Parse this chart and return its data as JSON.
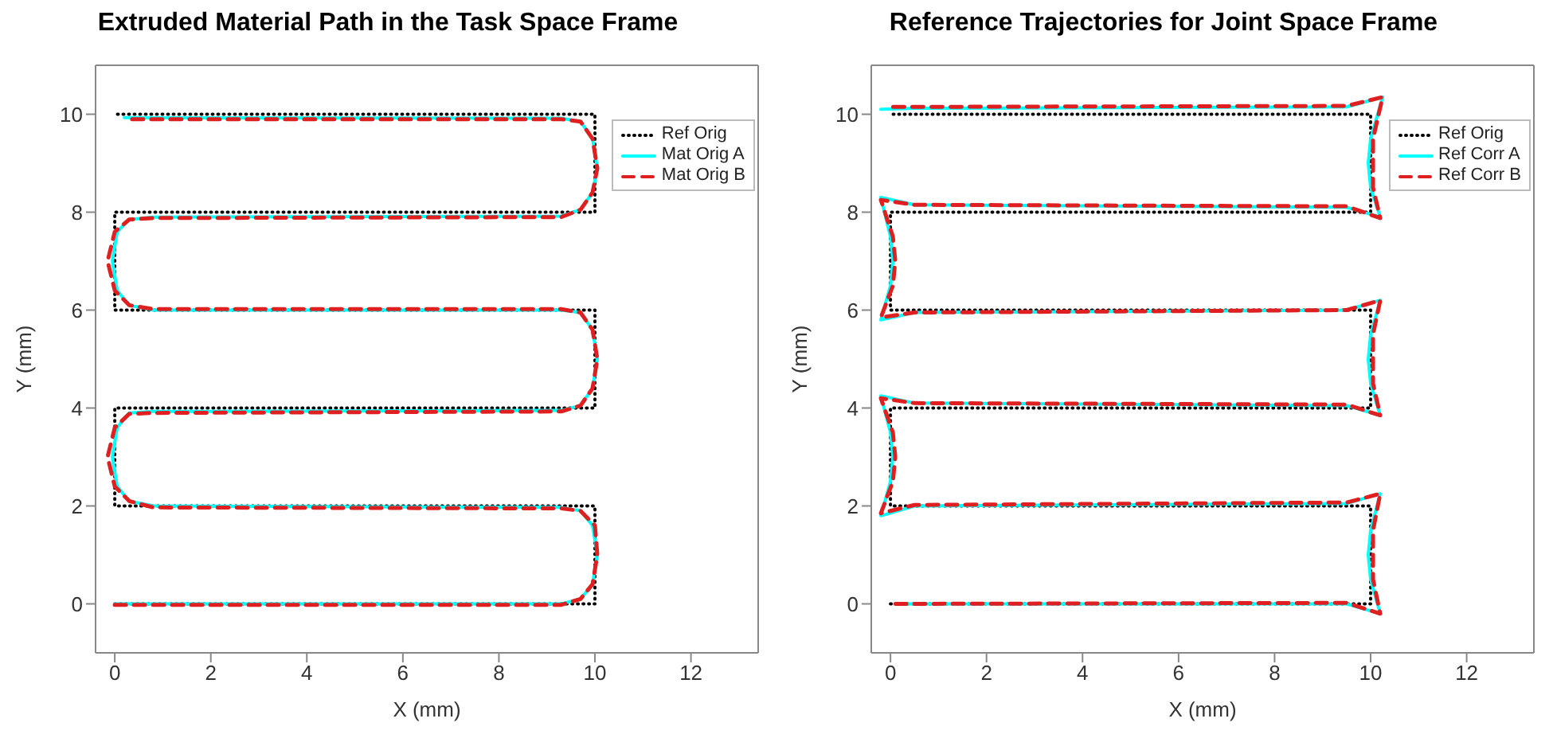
{
  "chart_data": [
    {
      "type": "line",
      "title": "Extruded Material Path in the Task Space Frame",
      "xlabel": "X (mm)",
      "ylabel": "Y (mm)",
      "xlim": [
        -0.4,
        13.4
      ],
      "ylim": [
        -1,
        11
      ],
      "xticks": [
        0,
        2,
        4,
        6,
        8,
        10,
        12
      ],
      "yticks": [
        0,
        2,
        4,
        6,
        8,
        10
      ],
      "legend": "top right",
      "series": [
        {
          "name": "Ref Orig",
          "color": "#000000",
          "line_style": "dotted",
          "x": [
            0,
            10,
            10,
            0,
            0,
            10,
            10,
            0,
            0,
            10,
            10,
            0
          ],
          "values": [
            0,
            0,
            2,
            2,
            4,
            4,
            6,
            6,
            8,
            8,
            10,
            10
          ]
        },
        {
          "name": "Mat Orig A",
          "color": "#00ffff",
          "line_style": "solid",
          "x": [
            0,
            9.3,
            9.7,
            9.95,
            10.05,
            9.95,
            9.7,
            9.3,
            0.8,
            0.3,
            0.05,
            -0.05,
            0.05,
            0.3,
            0.8,
            9.3,
            9.7,
            9.95,
            10.05,
            9.95,
            9.7,
            9.3,
            0.8,
            0.3,
            0.05,
            -0.05,
            0.05,
            0.3,
            0.8,
            9.3,
            9.7,
            9.95,
            10.05,
            9.95,
            9.7,
            9.3,
            0.2
          ],
          "values": [
            0,
            0,
            0.1,
            0.4,
            1,
            1.6,
            1.9,
            1.97,
            2,
            2.1,
            2.4,
            3,
            3.6,
            3.9,
            3.93,
            3.95,
            4.05,
            4.4,
            5,
            5.6,
            5.95,
            6,
            6,
            6.1,
            6.4,
            7,
            7.6,
            7.85,
            7.9,
            7.92,
            8.05,
            8.4,
            8.9,
            9.5,
            9.85,
            9.92,
            9.93
          ]
        },
        {
          "name": "Mat Orig B",
          "color": "#e02020",
          "line_style": "dashed",
          "x": [
            0,
            9.3,
            9.7,
            9.95,
            10.05,
            10,
            9.7,
            9.3,
            0.8,
            0.3,
            0,
            -0.15,
            0,
            0.3,
            0.8,
            9.3,
            9.7,
            9.95,
            10.05,
            9.95,
            9.7,
            9.3,
            0.8,
            0.3,
            0,
            -0.15,
            0,
            0.3,
            0.8,
            9.3,
            9.7,
            9.95,
            10.05,
            9.95,
            9.7,
            9.3,
            0.2
          ],
          "values": [
            -0.02,
            -0.02,
            0.1,
            0.4,
            1,
            1.6,
            1.9,
            1.95,
            1.97,
            2.1,
            2.4,
            3,
            3.6,
            3.88,
            3.9,
            3.93,
            4.05,
            4.4,
            5,
            5.6,
            5.95,
            6.02,
            6.02,
            6.1,
            6.4,
            7,
            7.6,
            7.85,
            7.88,
            7.9,
            8.05,
            8.4,
            8.9,
            9.5,
            9.85,
            9.9,
            9.9
          ]
        }
      ]
    },
    {
      "type": "line",
      "title": "Reference Trajectories for Joint Space Frame",
      "xlabel": "X (mm)",
      "ylabel": "Y (mm)",
      "xlim": [
        -0.4,
        13.4
      ],
      "ylim": [
        -1,
        11
      ],
      "xticks": [
        0,
        2,
        4,
        6,
        8,
        10,
        12
      ],
      "yticks": [
        0,
        2,
        4,
        6,
        8,
        10
      ],
      "legend": "top right",
      "series": [
        {
          "name": "Ref Orig",
          "color": "#000000",
          "line_style": "dotted",
          "x": [
            0,
            10,
            10,
            0,
            0,
            10,
            10,
            0,
            0,
            10,
            10,
            0
          ],
          "values": [
            0,
            0,
            2,
            2,
            4,
            4,
            6,
            6,
            8,
            8,
            10,
            10
          ]
        },
        {
          "name": "Ref Corr A",
          "color": "#00ffff",
          "line_style": "solid",
          "x": [
            0.15,
            9.5,
            10.2,
            10,
            9.95,
            10,
            10.2,
            9.5,
            0.5,
            -0.2,
            0,
            0.05,
            0,
            -0.2,
            0.5,
            9.5,
            10.2,
            10,
            9.95,
            10,
            10.2,
            9.5,
            0.5,
            -0.2,
            0,
            0.05,
            0,
            -0.2,
            0.5,
            9.5,
            10.2,
            10,
            9.95,
            10,
            10.25,
            9.5,
            0.5,
            -0.2
          ],
          "values": [
            0,
            0,
            -0.2,
            0.5,
            1,
            1.5,
            2.25,
            2.05,
            2,
            1.8,
            2.5,
            3,
            3.5,
            4.25,
            4.1,
            4.05,
            3.85,
            4.5,
            5,
            5.5,
            6.2,
            6,
            5.95,
            5.8,
            6.5,
            7,
            7.5,
            8.3,
            8.15,
            8.1,
            7.9,
            8.5,
            9,
            9.5,
            10.35,
            10.15,
            10.12,
            10.1
          ]
        },
        {
          "name": "Ref Corr B",
          "color": "#e02020",
          "line_style": "dashed",
          "x": [
            0.1,
            9.5,
            10.2,
            10.05,
            10.05,
            10.05,
            10.2,
            9.5,
            0.5,
            -0.2,
            0.05,
            0.1,
            0.05,
            -0.2,
            0.5,
            9.5,
            10.2,
            10.05,
            10.05,
            10.05,
            10.2,
            9.5,
            0.5,
            -0.2,
            0.05,
            0.1,
            0.05,
            -0.2,
            0.5,
            9.5,
            10.2,
            10.05,
            10.05,
            10.05,
            10.25,
            9.5,
            0.5,
            0
          ],
          "values": [
            0,
            0.02,
            -0.2,
            0.5,
            1,
            1.5,
            2.25,
            2.07,
            2.02,
            1.85,
            2.5,
            3,
            3.5,
            4.2,
            4.1,
            4.07,
            3.85,
            4.5,
            5,
            5.5,
            6.2,
            6,
            5.95,
            5.85,
            6.5,
            7,
            7.5,
            8.25,
            8.15,
            8.12,
            7.88,
            8.5,
            9,
            9.5,
            10.35,
            10.17,
            10.15,
            10.15
          ]
        }
      ]
    }
  ]
}
